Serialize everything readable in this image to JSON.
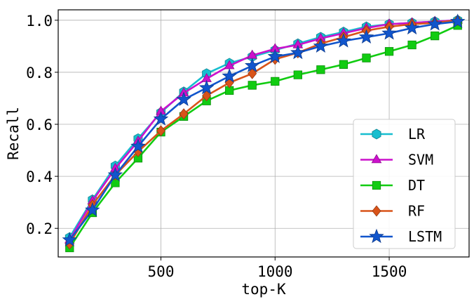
{
  "chart_data": {
    "type": "line",
    "xlabel": "top-K",
    "ylabel": "Recall",
    "xlim": [
      50,
      1850
    ],
    "ylim": [
      0.09,
      1.04
    ],
    "xticks": [
      500,
      1000,
      1500
    ],
    "yticks": [
      0.2,
      0.4,
      0.6,
      0.8,
      1.0
    ],
    "xtick_labels": [
      "500",
      "1000",
      "1500"
    ],
    "ytick_labels": [
      "0.2",
      "0.4",
      "0.6",
      "0.8",
      "1.0"
    ],
    "grid": true,
    "legend_position": "lower-right",
    "x": [
      100,
      200,
      300,
      400,
      500,
      600,
      700,
      800,
      900,
      1000,
      1100,
      1200,
      1300,
      1400,
      1500,
      1600,
      1700,
      1800
    ],
    "series": [
      {
        "name": "LR",
        "color": "#17becf",
        "marker": "hexagon",
        "values": [
          0.165,
          0.31,
          0.44,
          0.545,
          0.645,
          0.725,
          0.795,
          0.835,
          0.86,
          0.885,
          0.91,
          0.935,
          0.955,
          0.975,
          0.985,
          0.99,
          0.995,
          1.0
        ]
      },
      {
        "name": "SVM",
        "color": "#cc11cc",
        "marker": "triangle",
        "values": [
          0.155,
          0.305,
          0.43,
          0.535,
          0.65,
          0.72,
          0.775,
          0.825,
          0.865,
          0.89,
          0.905,
          0.93,
          0.95,
          0.97,
          0.985,
          0.99,
          0.995,
          1.0
        ]
      },
      {
        "name": "DT",
        "color": "#11cc11",
        "marker": "square",
        "values": [
          0.125,
          0.26,
          0.375,
          0.47,
          0.57,
          0.63,
          0.69,
          0.73,
          0.75,
          0.765,
          0.79,
          0.81,
          0.83,
          0.855,
          0.88,
          0.905,
          0.94,
          0.98
        ]
      },
      {
        "name": "RF",
        "color": "#d95319",
        "marker": "diamond",
        "values": [
          0.14,
          0.29,
          0.405,
          0.495,
          0.575,
          0.64,
          0.71,
          0.76,
          0.795,
          0.85,
          0.875,
          0.91,
          0.935,
          0.96,
          0.975,
          0.985,
          0.99,
          1.0
        ]
      },
      {
        "name": "LSTM",
        "color": "#1155cc",
        "marker": "star",
        "values": [
          0.155,
          0.27,
          0.405,
          0.515,
          0.62,
          0.695,
          0.74,
          0.785,
          0.825,
          0.86,
          0.875,
          0.9,
          0.92,
          0.935,
          0.95,
          0.97,
          0.985,
          0.995
        ]
      }
    ]
  }
}
